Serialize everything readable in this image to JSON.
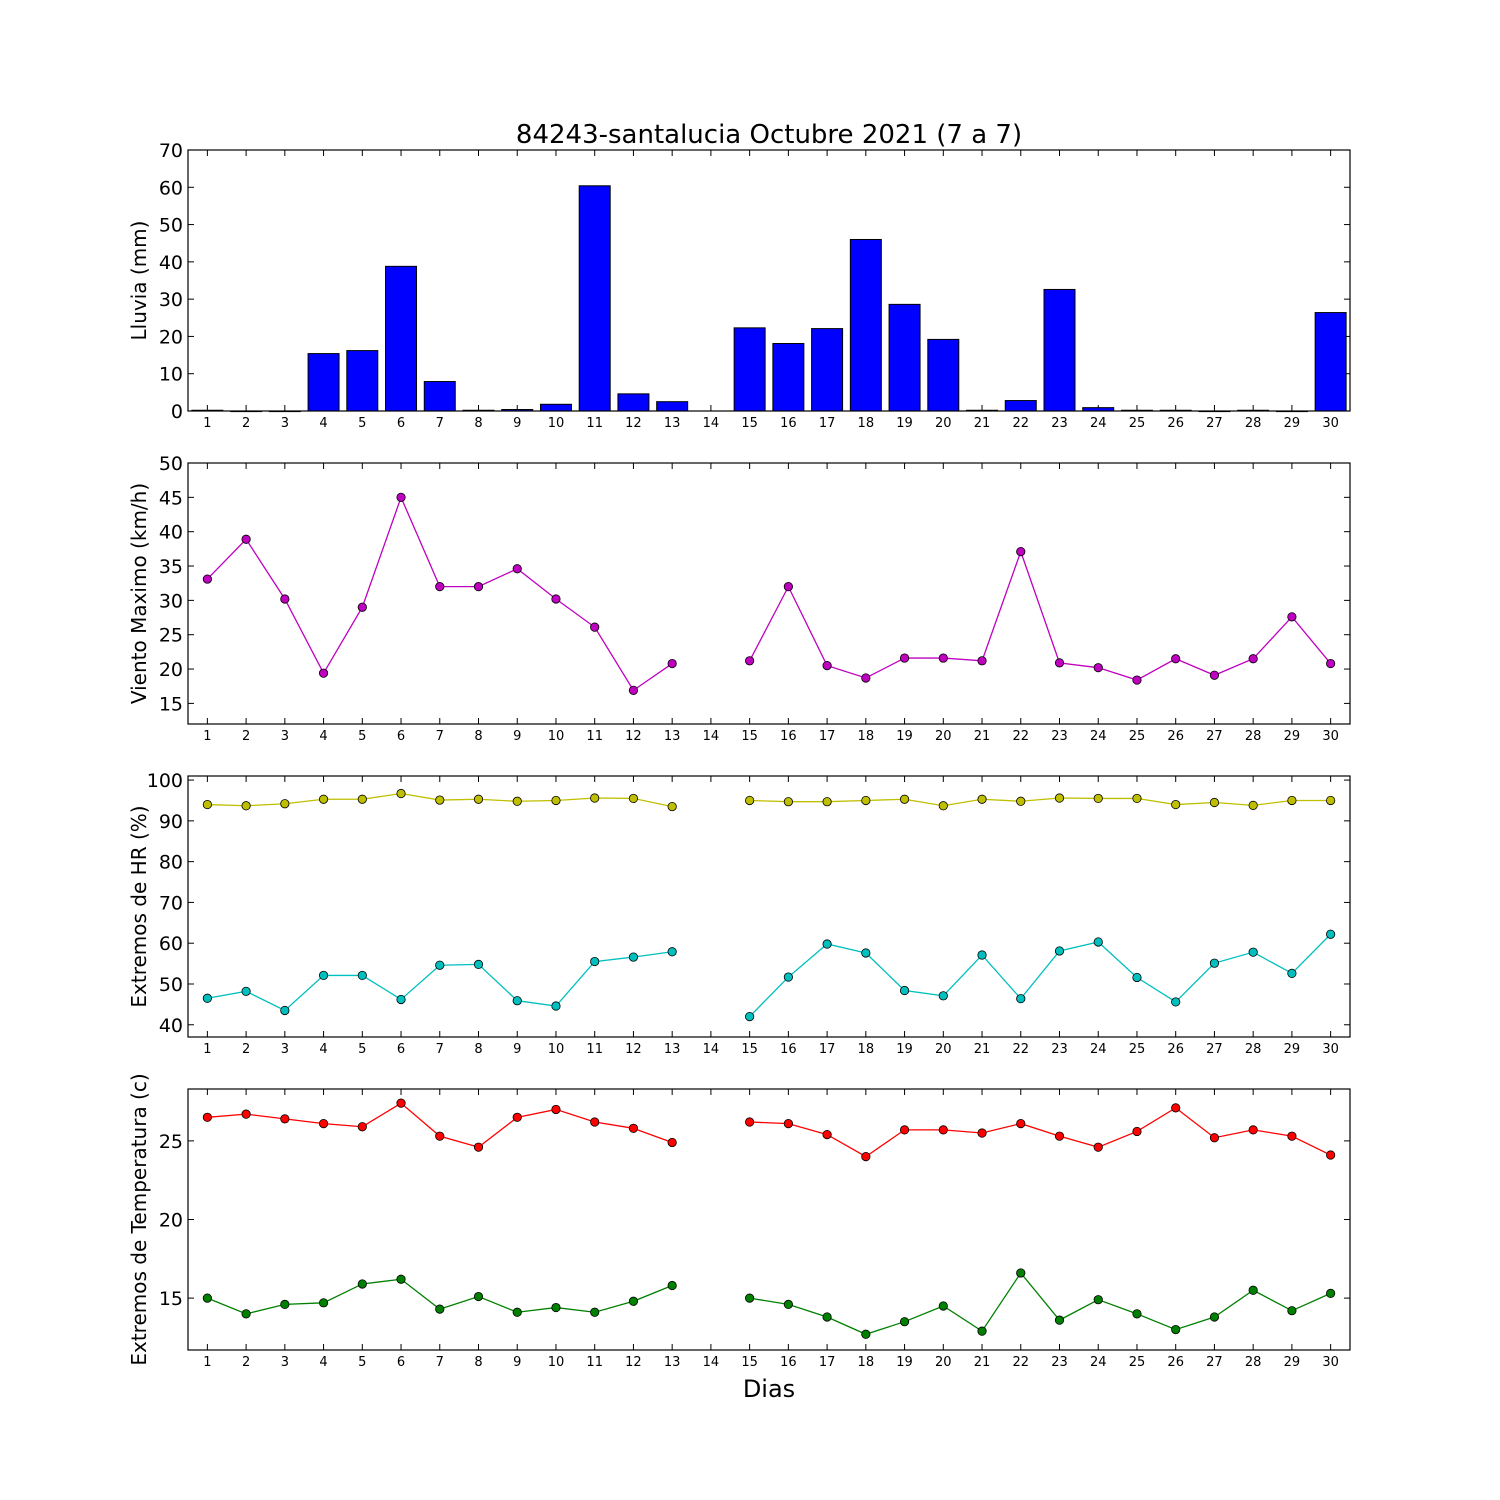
{
  "title": "84243-santalucia Octubre 2021  (7 a 7)",
  "xlabel": "Dias",
  "chart_data": [
    {
      "type": "bar",
      "ylabel": "Lluvia (mm)",
      "ylim": [
        0,
        70
      ],
      "yticks": [
        0,
        10,
        20,
        30,
        40,
        50,
        60,
        70
      ],
      "xticks": [
        1,
        2,
        3,
        4,
        5,
        6,
        7,
        8,
        9,
        10,
        11,
        12,
        13,
        14,
        15,
        16,
        17,
        18,
        19,
        20,
        21,
        22,
        23,
        24,
        25,
        26,
        27,
        28,
        29,
        30
      ],
      "series": [
        {
          "color": "#0000ff",
          "x": [
            1,
            2,
            3,
            4,
            5,
            6,
            7,
            8,
            9,
            10,
            11,
            12,
            13,
            14,
            15,
            16,
            17,
            18,
            19,
            20,
            21,
            22,
            23,
            24,
            25,
            26,
            27,
            28,
            29,
            30
          ],
          "values": [
            0.2,
            0,
            0,
            15.4,
            16.2,
            38.8,
            7.9,
            0.2,
            0.4,
            1.8,
            60.4,
            4.6,
            2.5,
            null,
            22.3,
            18.1,
            22.1,
            46.0,
            28.6,
            19.2,
            0.2,
            2.8,
            32.6,
            0.9,
            0.2,
            0.2,
            0,
            0.2,
            0,
            26.4
          ]
        }
      ]
    },
    {
      "type": "line",
      "ylabel": "Viento Maximo (km/h)",
      "ylim": [
        12,
        50
      ],
      "yticks": [
        15,
        20,
        25,
        30,
        35,
        40,
        45,
        50
      ],
      "xticks": [
        1,
        2,
        3,
        4,
        5,
        6,
        7,
        8,
        9,
        10,
        11,
        12,
        13,
        14,
        15,
        16,
        17,
        18,
        19,
        20,
        21,
        22,
        23,
        24,
        25,
        26,
        27,
        28,
        29,
        30
      ],
      "series": [
        {
          "color": "#bf00bf",
          "x": [
            1,
            2,
            3,
            4,
            5,
            6,
            7,
            8,
            9,
            10,
            11,
            12,
            13,
            14,
            15,
            16,
            17,
            18,
            19,
            20,
            21,
            22,
            23,
            24,
            25,
            26,
            27,
            28,
            29,
            30
          ],
          "values": [
            33.1,
            38.9,
            30.2,
            19.4,
            29.0,
            45.0,
            32.0,
            32.0,
            34.6,
            30.2,
            26.1,
            16.9,
            20.8,
            null,
            21.2,
            32.0,
            20.5,
            18.7,
            21.6,
            21.6,
            21.2,
            37.1,
            20.9,
            20.2,
            18.4,
            21.5,
            19.1,
            21.5,
            27.6,
            20.8
          ]
        }
      ]
    },
    {
      "type": "line",
      "ylabel": "Extremos de HR (%)",
      "ylim": [
        37,
        101
      ],
      "yticks": [
        40,
        50,
        60,
        70,
        80,
        90,
        100
      ],
      "xticks": [
        1,
        2,
        3,
        4,
        5,
        6,
        7,
        8,
        9,
        10,
        11,
        12,
        13,
        14,
        15,
        16,
        17,
        18,
        19,
        20,
        21,
        22,
        23,
        24,
        25,
        26,
        27,
        28,
        29,
        30
      ],
      "series": [
        {
          "color": "#bfbf00",
          "x": [
            1,
            2,
            3,
            4,
            5,
            6,
            7,
            8,
            9,
            10,
            11,
            12,
            13,
            14,
            15,
            16,
            17,
            18,
            19,
            20,
            21,
            22,
            23,
            24,
            25,
            26,
            27,
            28,
            29,
            30
          ],
          "values": [
            94.0,
            93.7,
            94.2,
            95.3,
            95.3,
            96.7,
            95.1,
            95.3,
            94.8,
            95.0,
            95.6,
            95.5,
            93.5,
            null,
            95.0,
            94.7,
            94.7,
            95.0,
            95.3,
            93.7,
            95.3,
            94.8,
            95.6,
            95.5,
            95.5,
            94.0,
            94.5,
            93.8,
            95.0,
            95.0
          ]
        },
        {
          "color": "#00bfbf",
          "x": [
            1,
            2,
            3,
            4,
            5,
            6,
            7,
            8,
            9,
            10,
            11,
            12,
            13,
            14,
            15,
            16,
            17,
            18,
            19,
            20,
            21,
            22,
            23,
            24,
            25,
            26,
            27,
            28,
            29,
            30
          ],
          "values": [
            46.5,
            48.2,
            43.5,
            52.1,
            52.1,
            46.2,
            54.6,
            54.8,
            45.9,
            44.6,
            55.5,
            56.6,
            57.9,
            null,
            42.0,
            51.7,
            59.8,
            57.6,
            48.4,
            47.1,
            57.1,
            46.4,
            58.1,
            60.3,
            51.6,
            45.6,
            55.1,
            57.8,
            52.6,
            62.2
          ]
        }
      ]
    },
    {
      "type": "line",
      "ylabel": "Extremos de Temperatura (c)",
      "ylim": [
        11.7,
        28.3
      ],
      "yticks": [
        15,
        20,
        25
      ],
      "xticks": [
        1,
        2,
        3,
        4,
        5,
        6,
        7,
        8,
        9,
        10,
        11,
        12,
        13,
        14,
        15,
        16,
        17,
        18,
        19,
        20,
        21,
        22,
        23,
        24,
        25,
        26,
        27,
        28,
        29,
        30
      ],
      "series": [
        {
          "color": "#ff0000",
          "x": [
            1,
            2,
            3,
            4,
            5,
            6,
            7,
            8,
            9,
            10,
            11,
            12,
            13,
            14,
            15,
            16,
            17,
            18,
            19,
            20,
            21,
            22,
            23,
            24,
            25,
            26,
            27,
            28,
            29,
            30
          ],
          "values": [
            26.5,
            26.7,
            26.4,
            26.1,
            25.9,
            27.4,
            25.3,
            24.6,
            26.5,
            27.0,
            26.2,
            25.8,
            24.9,
            null,
            26.2,
            26.1,
            25.4,
            24.0,
            25.7,
            25.7,
            25.5,
            26.1,
            25.3,
            24.6,
            25.6,
            27.1,
            25.2,
            25.7,
            25.3,
            24.1
          ]
        },
        {
          "color": "#008000",
          "x": [
            1,
            2,
            3,
            4,
            5,
            6,
            7,
            8,
            9,
            10,
            11,
            12,
            13,
            14,
            15,
            16,
            17,
            18,
            19,
            20,
            21,
            22,
            23,
            24,
            25,
            26,
            27,
            28,
            29,
            30
          ],
          "values": [
            15.0,
            14.0,
            14.6,
            14.7,
            15.9,
            16.2,
            14.3,
            15.1,
            14.1,
            14.4,
            14.1,
            14.8,
            15.8,
            null,
            15.0,
            14.6,
            13.8,
            12.7,
            13.5,
            14.5,
            12.9,
            16.6,
            13.6,
            14.9,
            14.0,
            13.0,
            13.8,
            15.5,
            14.2,
            15.3
          ]
        }
      ]
    }
  ]
}
